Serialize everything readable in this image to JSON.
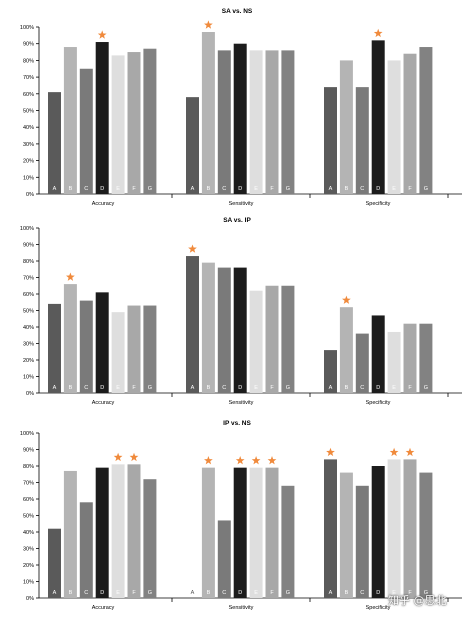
{
  "colors": {
    "A": "#5a5a5a",
    "B": "#b4b4b4",
    "C": "#7a7a7a",
    "D": "#1c1c1c",
    "E": "#dedede",
    "F": "#a8a8a8",
    "G": "#828282",
    "star": "#f08a3c",
    "bar_label_light": "#ffffff"
  },
  "watermark": "知乎 @思北",
  "chart_data": [
    {
      "type": "bar",
      "title": "SA vs. NS",
      "categories": [
        "Accuracy",
        "Sensitivity",
        "Specificity"
      ],
      "bar_labels": [
        "A",
        "B",
        "C",
        "D",
        "E",
        "F",
        "G"
      ],
      "ylim": [
        0,
        100
      ],
      "yticks": [
        "0%",
        "10%",
        "20%",
        "30%",
        "40%",
        "50%",
        "60%",
        "70%",
        "80%",
        "90%",
        "100%"
      ],
      "values": [
        [
          61,
          88,
          75,
          91,
          83,
          85,
          87
        ],
        [
          58,
          97,
          86,
          90,
          86,
          86,
          86
        ],
        [
          64,
          80,
          64,
          92,
          80,
          84,
          88
        ]
      ],
      "stars": [
        [
          false,
          false,
          false,
          true,
          false,
          false,
          false
        ],
        [
          false,
          true,
          false,
          false,
          false,
          false,
          false
        ],
        [
          false,
          false,
          false,
          true,
          false,
          false,
          false
        ]
      ]
    },
    {
      "type": "bar",
      "title": "SA vs. IP",
      "categories": [
        "Accuracy",
        "Sensitivity",
        "Specificity"
      ],
      "bar_labels": [
        "A",
        "B",
        "C",
        "D",
        "E",
        "F",
        "G"
      ],
      "ylim": [
        0,
        100
      ],
      "yticks": [
        "0%",
        "10%",
        "20%",
        "30%",
        "40%",
        "50%",
        "60%",
        "70%",
        "80%",
        "90%",
        "100%"
      ],
      "values": [
        [
          54,
          66,
          56,
          61,
          49,
          53,
          53
        ],
        [
          83,
          79,
          76,
          76,
          62,
          65,
          65
        ],
        [
          26,
          52,
          36,
          47,
          37,
          42,
          42
        ]
      ],
      "stars": [
        [
          false,
          true,
          false,
          false,
          false,
          false,
          false
        ],
        [
          true,
          false,
          false,
          false,
          false,
          false,
          false
        ],
        [
          false,
          true,
          false,
          false,
          false,
          false,
          false
        ]
      ]
    },
    {
      "type": "bar",
      "title": "IP vs. NS",
      "categories": [
        "Accuracy",
        "Sensitivity",
        "Specificity"
      ],
      "bar_labels": [
        "A",
        "B",
        "C",
        "D",
        "E",
        "F",
        "G"
      ],
      "ylim": [
        0,
        100
      ],
      "yticks": [
        "0%",
        "10%",
        "20%",
        "30%",
        "40%",
        "50%",
        "60%",
        "70%",
        "80%",
        "90%",
        "100%"
      ],
      "values": [
        [
          42,
          77,
          58,
          79,
          81,
          81,
          72
        ],
        [
          0,
          79,
          47,
          79,
          79,
          79,
          68
        ],
        [
          84,
          76,
          68,
          80,
          84,
          84,
          76
        ]
      ],
      "stars": [
        [
          false,
          false,
          false,
          false,
          true,
          true,
          false
        ],
        [
          false,
          true,
          false,
          true,
          true,
          true,
          false
        ],
        [
          true,
          false,
          false,
          false,
          true,
          true,
          false
        ]
      ]
    }
  ]
}
